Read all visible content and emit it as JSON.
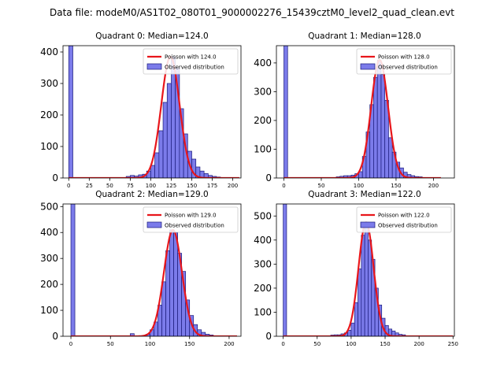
{
  "suptitle": "Data file: modeM0/AS1T02_080T01_9000002276_15439cztM0_level2_quad_clean.evt",
  "colors": {
    "bar_fill": "#7b7bea",
    "bar_edge": "#1a1a7a",
    "fit_line": "#e8161b"
  },
  "chart_data": [
    {
      "type": "bar",
      "title": "Quadrant 0: Median=124.0",
      "median": 124.0,
      "bin_width": 5,
      "xlim": [
        -7,
        210
      ],
      "ylim": [
        0,
        420
      ],
      "xticks": [
        0,
        25,
        50,
        75,
        100,
        125,
        150,
        175,
        200
      ],
      "yticks": [
        0,
        100,
        200,
        300,
        400
      ],
      "legend": {
        "position": "top-right",
        "fit_label": "Poisson with 124.0",
        "hist_label": "Observed distribution"
      },
      "bins": [
        [
          0,
          420
        ],
        [
          70,
          5
        ],
        [
          75,
          8
        ],
        [
          80,
          6
        ],
        [
          85,
          10
        ],
        [
          90,
          12
        ],
        [
          95,
          22
        ],
        [
          100,
          40
        ],
        [
          105,
          80
        ],
        [
          110,
          150
        ],
        [
          115,
          240
        ],
        [
          120,
          300
        ],
        [
          125,
          385
        ],
        [
          130,
          350
        ],
        [
          135,
          220
        ],
        [
          140,
          140
        ],
        [
          145,
          85
        ],
        [
          150,
          60
        ],
        [
          155,
          35
        ],
        [
          160,
          22
        ],
        [
          165,
          14
        ],
        [
          170,
          8
        ],
        [
          175,
          5
        ],
        [
          180,
          3
        ]
      ]
    },
    {
      "type": "bar",
      "title": "Quadrant 1: Median=128.0",
      "median": 128.0,
      "bin_width": 5,
      "xlim": [
        -10,
        228
      ],
      "ylim": [
        0,
        460
      ],
      "xticks": [
        0,
        50,
        100,
        150,
        200
      ],
      "yticks": [
        0,
        100,
        200,
        300,
        400
      ],
      "legend": {
        "position": "top-right",
        "fit_label": "Poisson with 128.0",
        "hist_label": "Observed distribution"
      },
      "bins": [
        [
          0,
          460
        ],
        [
          70,
          4
        ],
        [
          75,
          6
        ],
        [
          80,
          8
        ],
        [
          85,
          8
        ],
        [
          90,
          10
        ],
        [
          95,
          15
        ],
        [
          100,
          22
        ],
        [
          105,
          75
        ],
        [
          110,
          160
        ],
        [
          115,
          255
        ],
        [
          120,
          350
        ],
        [
          125,
          410
        ],
        [
          130,
          360
        ],
        [
          135,
          270
        ],
        [
          140,
          140
        ],
        [
          145,
          90
        ],
        [
          150,
          55
        ],
        [
          155,
          35
        ],
        [
          160,
          20
        ],
        [
          165,
          12
        ],
        [
          170,
          8
        ],
        [
          175,
          5
        ],
        [
          180,
          4
        ]
      ]
    },
    {
      "type": "bar",
      "title": "Quadrant 2: Median=129.0",
      "median": 129.0,
      "bin_width": 5,
      "xlim": [
        -10,
        215
      ],
      "ylim": [
        0,
        510
      ],
      "xticks": [
        0,
        50,
        100,
        150,
        200
      ],
      "yticks": [
        0,
        100,
        200,
        300,
        400,
        500
      ],
      "legend": {
        "position": "top-right",
        "fit_label": "Poisson with 129.0",
        "hist_label": "Observed distribution"
      },
      "bins": [
        [
          0,
          510
        ],
        [
          75,
          10
        ],
        [
          95,
          8
        ],
        [
          100,
          25
        ],
        [
          105,
          55
        ],
        [
          110,
          120
        ],
        [
          115,
          210
        ],
        [
          120,
          330
        ],
        [
          125,
          410
        ],
        [
          130,
          400
        ],
        [
          135,
          320
        ],
        [
          140,
          250
        ],
        [
          145,
          140
        ],
        [
          150,
          80
        ],
        [
          155,
          45
        ],
        [
          160,
          25
        ],
        [
          165,
          15
        ],
        [
          170,
          8
        ],
        [
          175,
          5
        ]
      ]
    },
    {
      "type": "bar",
      "title": "Quadrant 3: Median=122.0",
      "median": 122.0,
      "bin_width": 5,
      "xlim": [
        -10,
        252
      ],
      "ylim": [
        0,
        550
      ],
      "xticks": [
        0,
        50,
        100,
        150,
        200,
        250
      ],
      "yticks": [
        0,
        100,
        200,
        300,
        400,
        500
      ],
      "legend": {
        "position": "top-right",
        "fit_label": "Poisson with 122.0",
        "hist_label": "Observed distribution"
      },
      "bins": [
        [
          0,
          550
        ],
        [
          70,
          5
        ],
        [
          75,
          6
        ],
        [
          80,
          6
        ],
        [
          85,
          10
        ],
        [
          90,
          14
        ],
        [
          95,
          25
        ],
        [
          100,
          55
        ],
        [
          105,
          140
        ],
        [
          110,
          280
        ],
        [
          115,
          420
        ],
        [
          120,
          475
        ],
        [
          125,
          400
        ],
        [
          130,
          320
        ],
        [
          135,
          200
        ],
        [
          140,
          130
        ],
        [
          145,
          75
        ],
        [
          150,
          45
        ],
        [
          155,
          30
        ],
        [
          160,
          22
        ],
        [
          165,
          14
        ],
        [
          170,
          8
        ],
        [
          175,
          6
        ]
      ]
    }
  ]
}
